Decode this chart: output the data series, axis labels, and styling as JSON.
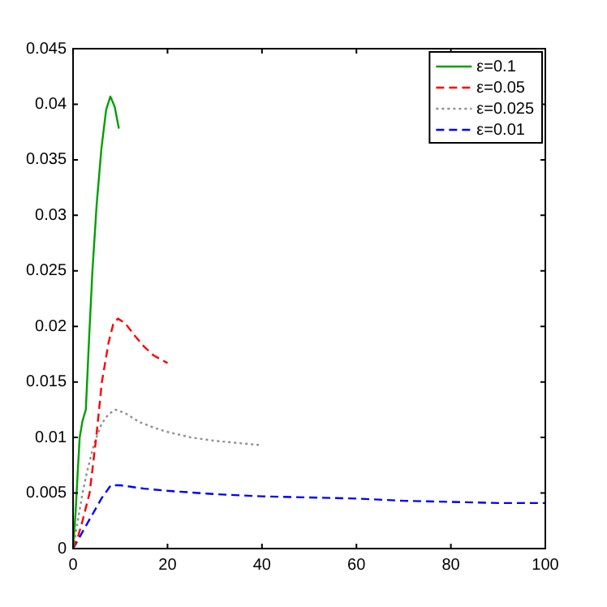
{
  "chart_data": {
    "type": "line",
    "xlim": [
      0,
      100
    ],
    "xticks": [
      0,
      20,
      40,
      60,
      80,
      100
    ],
    "ylim": [
      0,
      0.045
    ],
    "yticks": [
      0,
      0.005,
      0.01,
      0.015,
      0.02,
      0.025,
      0.03,
      0.035,
      0.04,
      0.045
    ],
    "grid": false,
    "legend": "top right",
    "marker": "none",
    "series": [
      {
        "name": "ε=0.1",
        "color": "#00a000",
        "line_style": "solid",
        "x": [
          0,
          0.5,
          1,
          1.4,
          2,
          2.7,
          3.4,
          4.1,
          5,
          6,
          7,
          7.9,
          8.8,
          9.7
        ],
        "values": [
          0,
          0.003,
          0.007,
          0.01,
          0.0115,
          0.0125,
          0.019,
          0.025,
          0.031,
          0.036,
          0.0395,
          0.0407,
          0.0398,
          0.0378
        ]
      },
      {
        "name": "ε=0.05",
        "color": "#ff0000",
        "line_style": "dashed",
        "x": [
          0,
          1,
          2,
          3.5,
          4.9,
          6.1,
          7.5,
          8.5,
          9.5,
          11,
          13,
          15,
          17,
          20
        ],
        "values": [
          0,
          0.001,
          0.0025,
          0.005,
          0.01,
          0.015,
          0.0185,
          0.0202,
          0.0207,
          0.0203,
          0.0192,
          0.0182,
          0.0174,
          0.0167
        ]
      },
      {
        "name": "ε=0.025",
        "color": "#909090",
        "line_style": "dotted",
        "x": [
          0,
          1,
          2,
          3,
          4.5,
          6,
          7.5,
          9,
          11,
          14,
          17,
          20,
          25,
          30,
          35,
          40
        ],
        "values": [
          0,
          0.0025,
          0.005,
          0.007,
          0.0095,
          0.0112,
          0.0121,
          0.0125,
          0.0122,
          0.0114,
          0.0109,
          0.0105,
          0.01,
          0.0097,
          0.0095,
          0.0093
        ]
      },
      {
        "name": "ε=0.01",
        "color": "#0000ff",
        "line_style": "dashed",
        "x": [
          0,
          2,
          4,
          6,
          8,
          10,
          15,
          20,
          30,
          40,
          50,
          60,
          70,
          80,
          90,
          100
        ],
        "values": [
          0,
          0.0015,
          0.003,
          0.0045,
          0.0057,
          0.0057,
          0.0054,
          0.0052,
          0.0049,
          0.0047,
          0.0046,
          0.0045,
          0.0043,
          0.0042,
          0.0041,
          0.0041
        ]
      }
    ]
  }
}
